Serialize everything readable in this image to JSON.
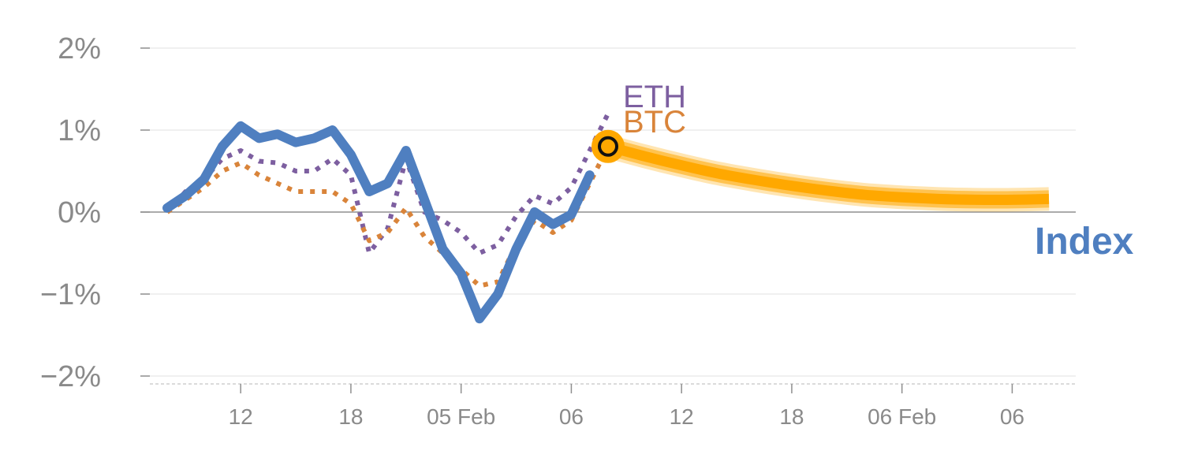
{
  "chart_data": {
    "type": "line",
    "title": "",
    "xlabel": "",
    "ylabel": "",
    "ylim": [
      -2,
      2
    ],
    "grid": true,
    "y_ticks": [
      {
        "value": 2,
        "label": "2%"
      },
      {
        "value": 1,
        "label": "1%"
      },
      {
        "value": 0,
        "label": "0%"
      },
      {
        "value": -1,
        "label": "−1%"
      },
      {
        "value": -2,
        "label": "−2%"
      }
    ],
    "x_range": [
      0,
      48
    ],
    "x_ticks": [
      {
        "value": 4,
        "label": "12"
      },
      {
        "value": 10,
        "label": "18"
      },
      {
        "value": 16,
        "label": "05 Feb"
      },
      {
        "value": 22,
        "label": "06"
      },
      {
        "value": 28,
        "label": "12"
      },
      {
        "value": 34,
        "label": "18"
      },
      {
        "value": 40,
        "label": "06 Feb"
      },
      {
        "value": 46,
        "label": "06"
      }
    ],
    "series": [
      {
        "name": "Index",
        "style": "solid",
        "color": "#4f7fc0",
        "x": [
          0,
          1,
          2,
          3,
          4,
          5,
          6,
          7,
          8,
          9,
          10,
          11,
          12,
          13,
          14,
          15,
          16,
          17,
          18,
          19,
          20,
          21,
          22,
          23
        ],
        "values": [
          0.05,
          0.2,
          0.4,
          0.8,
          1.05,
          0.9,
          0.95,
          0.85,
          0.9,
          1.0,
          0.7,
          0.25,
          0.35,
          0.75,
          0.15,
          -0.45,
          -0.75,
          -1.3,
          -1.0,
          -0.45,
          0.0,
          -0.15,
          -0.03,
          0.45
        ]
      },
      {
        "name": "ETH",
        "style": "dotted",
        "color": "#7d5fa0",
        "x": [
          0,
          1,
          2,
          3,
          4,
          5,
          6,
          7,
          8,
          9,
          10,
          11,
          12,
          13,
          14,
          15,
          16,
          17,
          18,
          19,
          20,
          21,
          22,
          23,
          24
        ],
        "values": [
          0.0,
          0.25,
          0.4,
          0.65,
          0.75,
          0.62,
          0.6,
          0.5,
          0.5,
          0.65,
          0.45,
          -0.5,
          -0.2,
          0.65,
          0.0,
          -0.1,
          -0.25,
          -0.5,
          -0.4,
          -0.05,
          0.2,
          0.1,
          0.3,
          0.75,
          1.2
        ]
      },
      {
        "name": "BTC",
        "style": "dotted",
        "color": "#d9843a",
        "x": [
          0,
          1,
          2,
          3,
          4,
          5,
          6,
          7,
          8,
          9,
          10,
          11,
          12,
          13,
          14,
          15,
          16,
          17,
          18,
          19,
          20,
          21,
          22,
          23,
          24
        ],
        "values": [
          0.0,
          0.15,
          0.3,
          0.5,
          0.6,
          0.45,
          0.35,
          0.25,
          0.25,
          0.25,
          0.1,
          -0.35,
          -0.25,
          0.05,
          -0.3,
          -0.5,
          -0.7,
          -0.9,
          -0.85,
          -0.4,
          -0.1,
          -0.25,
          -0.1,
          0.35,
          0.8
        ]
      }
    ],
    "forecast": {
      "color": "#ffa800",
      "x": [
        24,
        26,
        28,
        30,
        32,
        34,
        36,
        38,
        40,
        42,
        44,
        46,
        48
      ],
      "values": [
        0.8,
        0.68,
        0.57,
        0.47,
        0.39,
        0.32,
        0.26,
        0.21,
        0.18,
        0.16,
        0.15,
        0.15,
        0.16
      ]
    },
    "marker": {
      "x": 24,
      "value": 0.8,
      "color": "#ffa800"
    },
    "labels": {
      "eth": {
        "text": "ETH",
        "color": "#7d5fa0"
      },
      "btc": {
        "text": "BTC",
        "color": "#d9843a"
      },
      "index": {
        "text": "Index",
        "color": "#4f7fc0"
      }
    }
  }
}
